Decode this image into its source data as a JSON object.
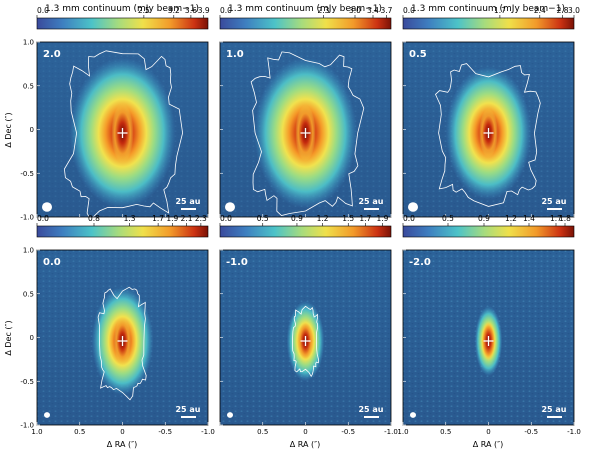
{
  "figure": {
    "colorbar_label": "1.3 mm continuum (mJy beam−1)",
    "xlabel": "Δ RA (″)",
    "ylabel": "Δ Dec (″)",
    "scalebar_label": "25 au",
    "colors": {
      "map_low": "#2b5f96",
      "map_mid": "#7fd3a0",
      "map_high": "#8a1a08",
      "contour": "#ffffff",
      "marker": "#ffffff",
      "panel_label": "#ffffff"
    }
  },
  "chart_data": [
    {
      "type": "heatmap",
      "panel_label": "2.0",
      "colorbar_ticks": [
        "0.0",
        "2.5",
        "3.2",
        "3.6",
        "3.9"
      ],
      "colorbar_tick_values": [
        0.0,
        2.5,
        3.2,
        3.6,
        3.9
      ],
      "colorbar_range": [
        0.0,
        4.0
      ],
      "x_ticks": [],
      "y_ticks": [
        "1.0",
        "0.5",
        "0",
        "-0.5",
        "-1.0"
      ],
      "xlim": [
        1.0,
        -1.0
      ],
      "ylim": [
        -1.0,
        1.0
      ]
    },
    {
      "type": "heatmap",
      "panel_label": "1.0",
      "colorbar_ticks": [
        "0.0",
        "2.3",
        "3.0",
        "3.4",
        "3.7"
      ],
      "colorbar_tick_values": [
        0.0,
        2.3,
        3.0,
        3.4,
        3.7
      ],
      "colorbar_range": [
        0.0,
        3.8
      ],
      "x_ticks": [],
      "y_ticks": [],
      "xlim": [
        1.0,
        -1.0
      ],
      "ylim": [
        -1.0,
        1.0
      ]
    },
    {
      "type": "heatmap",
      "panel_label": "0.5",
      "colorbar_ticks": [
        "0.0",
        "1.7",
        "2.4",
        "2.8",
        "3.0"
      ],
      "colorbar_tick_values": [
        0.0,
        1.7,
        2.4,
        2.8,
        3.0
      ],
      "colorbar_range": [
        0.0,
        3.0
      ],
      "x_ticks": [],
      "y_ticks": [],
      "xlim": [
        1.0,
        -1.0
      ],
      "ylim": [
        -1.0,
        1.0
      ]
    },
    {
      "type": "heatmap",
      "panel_label": "0.0",
      "colorbar_ticks": [
        "0.0",
        "0.8",
        "1.3",
        "1.7",
        "1.9",
        "2.1",
        "2.3"
      ],
      "colorbar_tick_values": [
        0.0,
        0.8,
        1.3,
        1.7,
        1.9,
        2.1,
        2.3
      ],
      "colorbar_range": [
        0.0,
        2.4
      ],
      "x_ticks": [
        "1.0",
        "0.5",
        "0",
        "-0.5",
        "-1.0"
      ],
      "y_ticks": [
        "1.0",
        "0.5",
        "0",
        "-0.5",
        "-1.0"
      ],
      "xlim": [
        1.0,
        -1.0
      ],
      "ylim": [
        -1.0,
        1.0
      ]
    },
    {
      "type": "heatmap",
      "panel_label": "-1.0",
      "colorbar_ticks": [
        "0.0",
        "0.5",
        "0.9",
        "1.2",
        "1.5",
        "1.7",
        "1.9"
      ],
      "colorbar_tick_values": [
        0.0,
        0.5,
        0.9,
        1.2,
        1.5,
        1.7,
        1.9
      ],
      "colorbar_range": [
        0.0,
        2.0
      ],
      "x_ticks": [
        "0.5",
        "0",
        "-0.5",
        "-1.0"
      ],
      "y_ticks": [],
      "xlim": [
        1.0,
        -1.0
      ],
      "ylim": [
        -1.0,
        1.0
      ]
    },
    {
      "type": "heatmap",
      "panel_label": "-2.0",
      "colorbar_ticks": [
        "0.0",
        "0.5",
        "0.9",
        "1.2",
        "1.4",
        "1.7",
        "1.8"
      ],
      "colorbar_tick_values": [
        0.0,
        0.5,
        0.9,
        1.2,
        1.4,
        1.7,
        1.8
      ],
      "colorbar_range": [
        0.0,
        1.9
      ],
      "x_ticks": [
        "1.0",
        "0.5",
        "0",
        "-0.5",
        "-1.0"
      ],
      "y_ticks": [],
      "xlim": [
        1.0,
        -1.0
      ],
      "ylim": [
        -1.0,
        1.0
      ]
    }
  ]
}
